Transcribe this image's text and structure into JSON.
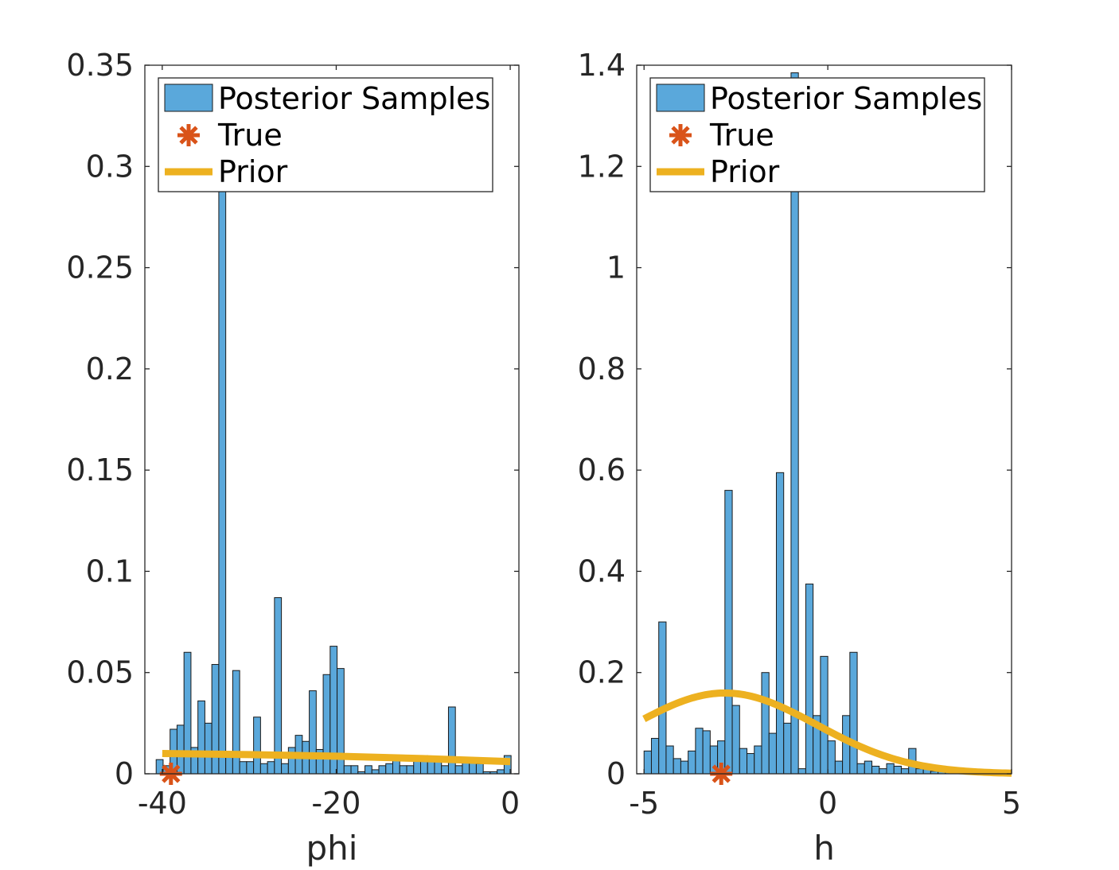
{
  "colors": {
    "posterior": "#5aa8db",
    "true_marker": "#d95319",
    "prior": "#edb120",
    "axes": "#262626"
  },
  "chart_data": [
    {
      "type": "bar",
      "subtype": "histogram",
      "xlabel": "phi",
      "ylabel": "",
      "xlim": [
        -42,
        1
      ],
      "ylim": [
        0,
        0.35
      ],
      "xticks": [
        -40,
        -20,
        0
      ],
      "yticks": [
        0,
        0.05,
        0.1,
        0.15,
        0.2,
        0.25,
        0.3,
        0.35
      ],
      "xtick_labels": [
        "-40",
        "-20",
        "0"
      ],
      "ytick_labels": [
        "0",
        "0.05",
        "0.1",
        "0.15",
        "0.2",
        "0.25",
        "0.3",
        "0.35"
      ],
      "legend": {
        "position": "top-right",
        "entries": [
          "Posterior Samples",
          "True",
          "Prior"
        ]
      },
      "histogram": {
        "bin_start": -40.7,
        "bin_width": 0.8,
        "values": [
          0.007,
          0.004,
          0.022,
          0.024,
          0.06,
          0.013,
          0.036,
          0.025,
          0.054,
          0.29,
          0.01,
          0.051,
          0.006,
          0.006,
          0.028,
          0.005,
          0.006,
          0.087,
          0.005,
          0.013,
          0.019,
          0.016,
          0.041,
          0.012,
          0.049,
          0.063,
          0.052,
          0.004,
          0.004,
          0.001,
          0.004,
          0.002,
          0.004,
          0.005,
          0.007,
          0.004,
          0.004,
          0.008,
          0.009,
          0.008,
          0.007,
          0.004,
          0.033,
          0.004,
          0.006,
          0.006,
          0.005,
          0.001,
          0.001,
          0.002,
          0.009
        ]
      },
      "true_value": {
        "x": -39,
        "y": 0
      },
      "prior_line": {
        "x": [
          -40,
          -30,
          -20,
          -10,
          0
        ],
        "y": [
          0.01,
          0.0095,
          0.0087,
          0.0075,
          0.006
        ]
      }
    },
    {
      "type": "bar",
      "subtype": "histogram",
      "xlabel": "h",
      "ylabel": "",
      "xlim": [
        -5.2,
        5
      ],
      "ylim": [
        0,
        1.4
      ],
      "xticks": [
        -5,
        0,
        5
      ],
      "yticks": [
        0,
        0.2,
        0.4,
        0.6,
        0.8,
        1,
        1.2,
        1.4
      ],
      "xtick_labels": [
        "-5",
        "0",
        "5"
      ],
      "ytick_labels": [
        "0",
        "0.2",
        "0.4",
        "0.6",
        "0.8",
        "1",
        "1.2",
        "1.4"
      ],
      "legend": {
        "position": "top-right",
        "entries": [
          "Posterior Samples",
          "True",
          "Prior"
        ]
      },
      "histogram": {
        "bin_start": -5.0,
        "bin_width": 0.2,
        "values": [
          0.045,
          0.07,
          0.3,
          0.055,
          0.03,
          0.025,
          0.045,
          0.09,
          0.085,
          0.055,
          0.065,
          0.56,
          0.135,
          0.05,
          0.04,
          0.055,
          0.2,
          0.08,
          0.595,
          0.1,
          1.385,
          0.01,
          0.375,
          0.115,
          0.232,
          0.065,
          0.025,
          0.115,
          0.24,
          0.02,
          0.025,
          0.015,
          0.01,
          0.02,
          0.015,
          0.01,
          0.05,
          0.01,
          0.01,
          0.005,
          0.015,
          0.005,
          0.005,
          0.002,
          0.002
        ]
      },
      "true_value": {
        "x": -2.9,
        "y": 0
      },
      "prior_line": {
        "mean": -2.8,
        "sd": 2.5,
        "x_range": [
          -5,
          5
        ]
      }
    }
  ]
}
